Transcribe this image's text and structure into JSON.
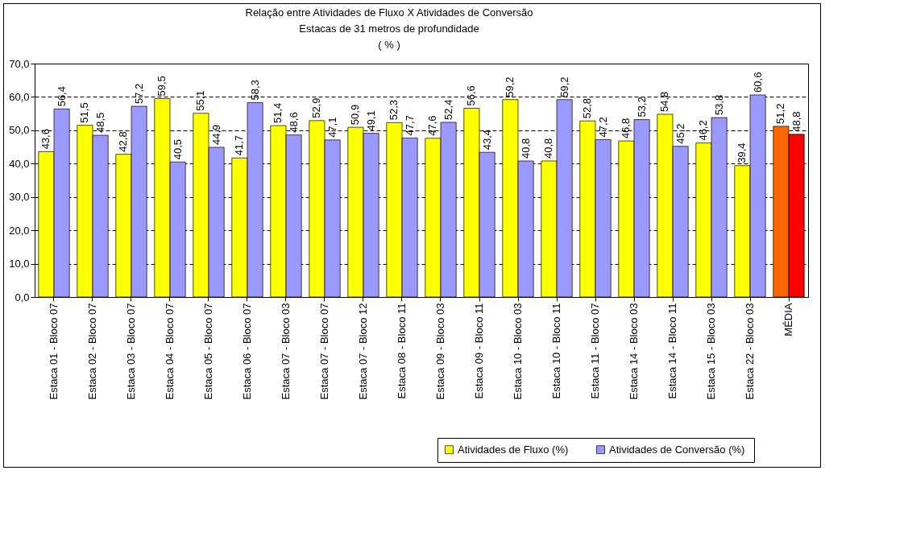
{
  "chart_data": {
    "type": "bar",
    "title": "Relação entre Atividades de Fluxo X Atividades de Conversão\nEstacas de 31 metros de profundidade\n( % )",
    "categories": [
      "Estaca 01 - Bloco 07",
      "Estaca 02 - Bloco 07",
      "Estaca 03 - Bloco 07",
      "Estaca 04 - Bloco 07",
      "Estaca 05 - Bloco 07",
      "Estaca 06 - Bloco 07",
      "Estaca 07 - Bloco 03",
      "Estaca 07 - Bloco 07",
      "Estaca 07 - Bloco 12",
      "Estaca 08 - Bloco 11",
      "Estaca 09 - Bloco 03",
      "Estaca 09 - Bloco 11",
      "Estaca 10 - Bloco 03",
      "Estaca 10 - Bloco 11",
      "Estaca 11 - Bloco 07",
      "Estaca 14 - Bloco 03",
      "Estaca 14 - Bloco 11",
      "Estaca 15 - Bloco 03",
      "Estaca 22 - Bloco 03",
      "MÉDIA"
    ],
    "series": [
      {
        "name": "Atividades de Fluxo  (%)",
        "color": "#ffff00",
        "colors": [
          "#ffff00",
          "#ffff00",
          "#ffff00",
          "#ffff00",
          "#ffff00",
          "#ffff00",
          "#ffff00",
          "#ffff00",
          "#ffff00",
          "#ffff00",
          "#ffff00",
          "#ffff00",
          "#ffff00",
          "#ffff00",
          "#ffff00",
          "#ffff00",
          "#ffff00",
          "#ffff00",
          "#ffff00",
          "#ff6600"
        ],
        "values": [
          43.6,
          51.5,
          42.8,
          59.5,
          55.1,
          41.7,
          51.4,
          52.9,
          50.9,
          52.3,
          47.6,
          56.6,
          59.2,
          40.8,
          52.8,
          46.8,
          54.8,
          46.2,
          39.4,
          51.2
        ],
        "value_labels": [
          "43,6",
          "51,5",
          "42,8",
          "59,5",
          "55,1",
          "41,7",
          "51,4",
          "52,9",
          "50,9",
          "52,3",
          "47,6",
          "56,6",
          "59,2",
          "40,8",
          "52,8",
          "46,8",
          "54,8",
          "46,2",
          "39,4",
          "51,2"
        ]
      },
      {
        "name": "Atividades de Conversão  (%)",
        "color": "#9999ff",
        "colors": [
          "#9999ff",
          "#9999ff",
          "#9999ff",
          "#9999ff",
          "#9999ff",
          "#9999ff",
          "#9999ff",
          "#9999ff",
          "#9999ff",
          "#9999ff",
          "#9999ff",
          "#9999ff",
          "#9999ff",
          "#9999ff",
          "#9999ff",
          "#9999ff",
          "#9999ff",
          "#9999ff",
          "#9999ff",
          "#ff0000"
        ],
        "values": [
          56.4,
          48.5,
          57.2,
          40.5,
          44.9,
          58.3,
          48.6,
          47.1,
          49.1,
          47.7,
          52.4,
          43.4,
          40.8,
          59.2,
          47.2,
          53.2,
          45.2,
          53.8,
          60.6,
          48.8
        ],
        "value_labels": [
          "56,4",
          "48,5",
          "57,2",
          "40,5",
          "44,9",
          "58,3",
          "48,6",
          "47,1",
          "49,1",
          "47,7",
          "52,4",
          "43,4",
          "40,8",
          "59,2",
          "47,2",
          "53,2",
          "45,2",
          "53,8",
          "60,6",
          "48,8"
        ]
      }
    ],
    "ylim": [
      0,
      70
    ],
    "yticks": [
      {
        "value": 0,
        "label": "0,0"
      },
      {
        "value": 10,
        "label": "10,0"
      },
      {
        "value": 20,
        "label": "20,0"
      },
      {
        "value": 30,
        "label": "30,0"
      },
      {
        "value": 40,
        "label": "40,0"
      },
      {
        "value": 50,
        "label": "50,0"
      },
      {
        "value": 60,
        "label": "60,0"
      },
      {
        "value": 70,
        "label": "70,0"
      }
    ],
    "grid": "y",
    "legend": "bottom right"
  }
}
